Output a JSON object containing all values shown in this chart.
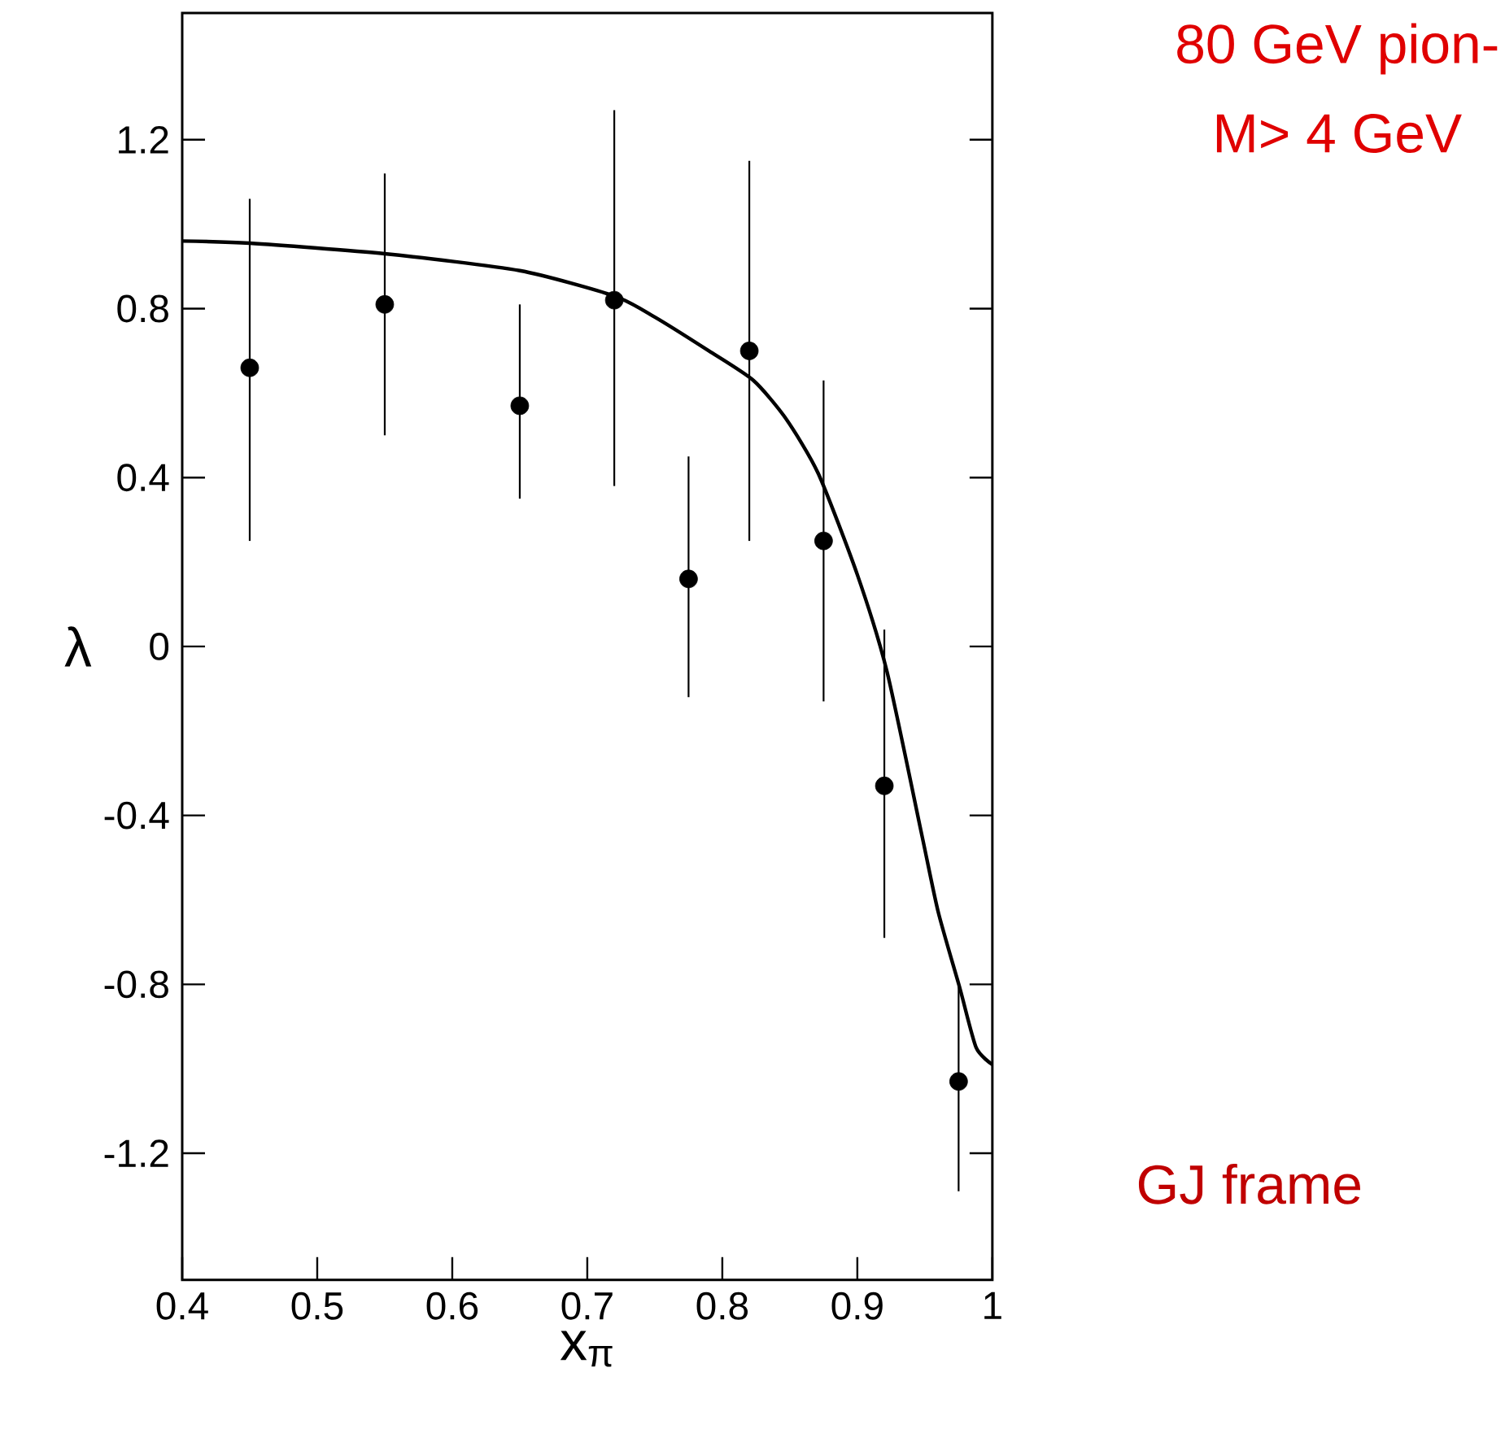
{
  "chart_data": {
    "type": "scatter",
    "xlabel": "x$_{π}$",
    "ylabel": "λ",
    "xlim": [
      0.4,
      1.0
    ],
    "ylim": [
      -1.5,
      1.5
    ],
    "xticks": [
      0.4,
      0.5,
      0.6,
      0.7,
      0.8,
      0.9,
      1
    ],
    "yticks": [
      -1.2,
      -0.8,
      -0.4,
      0,
      0.4,
      0.8,
      1.2
    ],
    "grid": false,
    "series": [
      {
        "type": "line",
        "color": "#000000",
        "marker": "none",
        "x": [
          0.4,
          0.45,
          0.55,
          0.65,
          0.72,
          0.75,
          0.79,
          0.823,
          0.847,
          0.871,
          0.9,
          0.922,
          0.948,
          0.96,
          0.976,
          0.988,
          1.0
        ],
        "values": [
          0.96,
          0.955,
          0.93,
          0.89,
          0.83,
          0.78,
          0.7,
          0.63,
          0.54,
          0.41,
          0.17,
          -0.06,
          -0.45,
          -0.63,
          -0.81,
          -0.95,
          -0.99
        ]
      },
      {
        "type": "scatter",
        "color": "#000000",
        "marker": "circle",
        "x": [
          0.45,
          0.55,
          0.65,
          0.72,
          0.775,
          0.82,
          0.875,
          0.92,
          0.975
        ],
        "values": [
          0.66,
          0.81,
          0.57,
          0.82,
          0.16,
          0.7,
          0.25,
          -0.33,
          -1.03
        ],
        "errors": [
          [
            0.25,
            1.06
          ],
          [
            0.5,
            1.12
          ],
          [
            0.35,
            0.81
          ],
          [
            0.38,
            1.27
          ],
          [
            -0.12,
            0.45
          ],
          [
            0.25,
            1.15
          ],
          [
            -0.13,
            0.63
          ],
          [
            -0.69,
            0.04
          ],
          [
            -1.29,
            -0.8
          ]
        ]
      }
    ],
    "annotations": [
      "80 GeV pion-",
      "M> 4 GeV",
      "GJ frame"
    ]
  }
}
